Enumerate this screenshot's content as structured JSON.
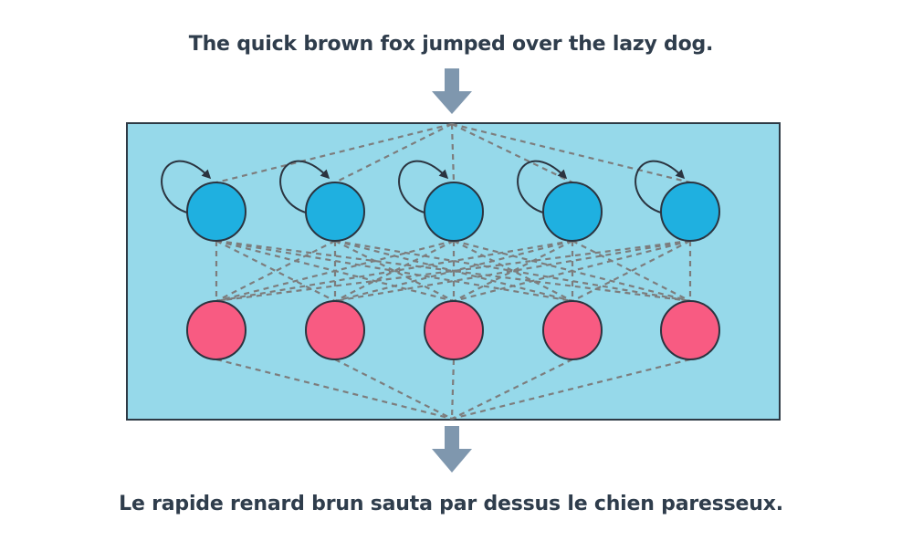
{
  "input_sentence": "The quick brown fox jumped over the lazy dog.",
  "output_sentence": "Le rapide renard brun sauta par dessus le chien paresseux.",
  "colors": {
    "text": "#2f3d4c",
    "arrow": "#7f97ae",
    "panel_fill": "#96d9ea",
    "panel_border": "#2e3a45",
    "recurrent_node": "#1fb0e0",
    "output_node": "#f85b82",
    "node_border": "#2b3440",
    "connection": "#7d7d7d"
  },
  "network": {
    "recurrent_node_count": 5,
    "output_node_count": 5
  }
}
